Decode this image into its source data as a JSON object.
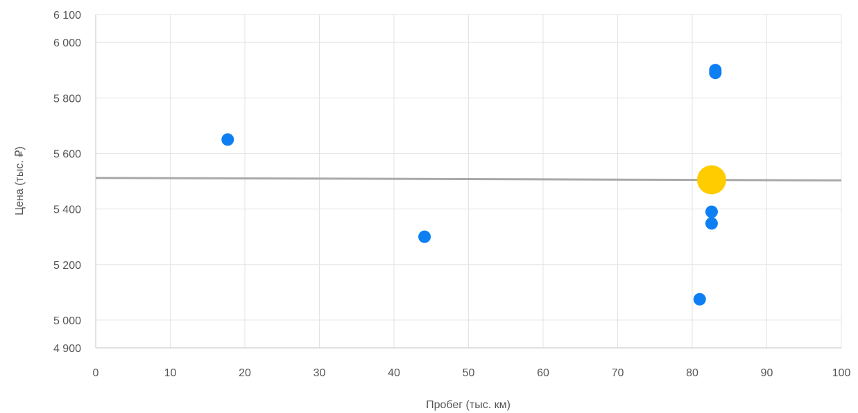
{
  "chart_data": {
    "type": "scatter",
    "title": "",
    "xlabel": "Пробег (тыс. км)",
    "ylabel": "Цена (тыс. ₽)",
    "xlim": [
      0,
      100
    ],
    "ylim": [
      4900,
      6100
    ],
    "x_ticks": [
      0,
      10,
      20,
      30,
      40,
      50,
      60,
      70,
      80,
      90,
      100
    ],
    "x_tick_labels": [
      "0",
      "10",
      "20",
      "30",
      "40",
      "50",
      "60",
      "70",
      "80",
      "90",
      "100"
    ],
    "y_ticks": [
      4900,
      5000,
      5200,
      5400,
      5600,
      5800,
      6000,
      6100
    ],
    "y_tick_labels": [
      "4 900",
      "5 000",
      "5 200",
      "5 400",
      "5 600",
      "5 800",
      "6 000",
      "6 100"
    ],
    "grid": true,
    "series": [
      {
        "color": "#0d7ff2",
        "points": [
          {
            "x": 17.7,
            "y": 5650
          },
          {
            "x": 44.1,
            "y": 5300
          },
          {
            "x": 81.0,
            "y": 5075
          },
          {
            "x": 82.6,
            "y": 5390
          },
          {
            "x": 82.6,
            "y": 5348
          },
          {
            "x": 83.1,
            "y": 5900
          },
          {
            "x": 83.1,
            "y": 5890
          }
        ]
      },
      {
        "color": "#ffcc00",
        "points": [
          {
            "x": 82.6,
            "y": 5505
          }
        ]
      }
    ],
    "trend_line": {
      "color": "#a8a8a8",
      "points": [
        {
          "x": 0,
          "y": 5512
        },
        {
          "x": 100,
          "y": 5503
        }
      ]
    }
  }
}
